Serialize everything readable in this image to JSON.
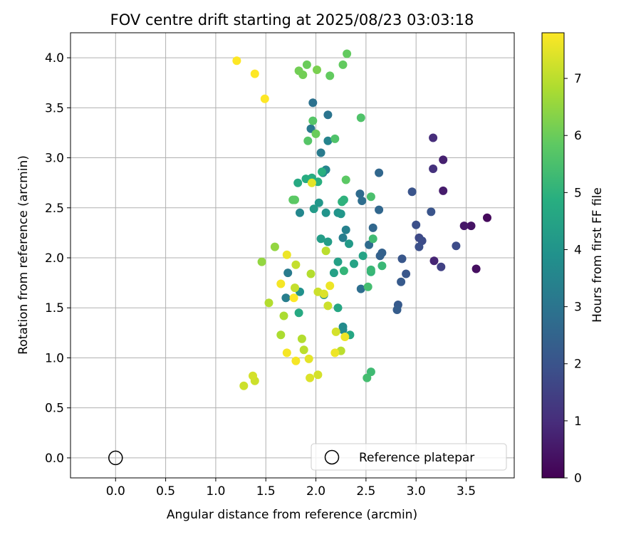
{
  "chart_data": {
    "type": "scatter",
    "title": "FOV centre drift starting at 2025/08/23 03:03:18",
    "xlabel": "Angular distance from reference (arcmin)",
    "ylabel": "Rotation from reference (arcmin)",
    "xlim": [
      -0.45,
      3.98
    ],
    "ylim": [
      -0.2,
      4.25
    ],
    "xticks": [
      "0.0",
      "0.5",
      "1.0",
      "1.5",
      "2.0",
      "2.5",
      "3.0",
      "3.5"
    ],
    "yticks": [
      "0.0",
      "0.5",
      "1.0",
      "1.5",
      "2.0",
      "2.5",
      "3.0",
      "3.5",
      "4.0"
    ],
    "grid": true,
    "colorbar": {
      "label": "Hours from first FF file",
      "range": [
        0,
        7.8
      ],
      "ticks": [
        "0",
        "1",
        "2",
        "3",
        "4",
        "5",
        "6",
        "7"
      ],
      "colormap": "viridis"
    },
    "legend": {
      "position": "lower-right",
      "entries": [
        {
          "label": "Reference platepar",
          "marker": "hollow-circle"
        }
      ]
    },
    "reference_point": {
      "x": 0.0,
      "y": 0.0
    },
    "points": [
      {
        "x": 3.71,
        "y": 2.4,
        "h": 0.2
      },
      {
        "x": 3.6,
        "y": 1.89,
        "h": 0.3
      },
      {
        "x": 3.55,
        "y": 2.32,
        "h": 0.4
      },
      {
        "x": 3.48,
        "y": 2.32,
        "h": 0.5
      },
      {
        "x": 3.27,
        "y": 2.67,
        "h": 0.6
      },
      {
        "x": 3.27,
        "y": 2.98,
        "h": 0.7
      },
      {
        "x": 3.18,
        "y": 1.97,
        "h": 0.8
      },
      {
        "x": 3.17,
        "y": 3.2,
        "h": 1.0
      },
      {
        "x": 3.17,
        "y": 2.89,
        "h": 1.1
      },
      {
        "x": 3.25,
        "y": 1.91,
        "h": 1.5
      },
      {
        "x": 3.4,
        "y": 2.12,
        "h": 1.8
      },
      {
        "x": 3.03,
        "y": 2.2,
        "h": 1.7
      },
      {
        "x": 3.06,
        "y": 2.17,
        "h": 1.8
      },
      {
        "x": 3.03,
        "y": 2.11,
        "h": 1.9
      },
      {
        "x": 3.0,
        "y": 2.33,
        "h": 1.9
      },
      {
        "x": 2.96,
        "y": 2.66,
        "h": 2.0
      },
      {
        "x": 3.15,
        "y": 2.46,
        "h": 2.0
      },
      {
        "x": 2.9,
        "y": 1.84,
        "h": 2.1
      },
      {
        "x": 2.86,
        "y": 1.99,
        "h": 2.1
      },
      {
        "x": 2.85,
        "y": 1.76,
        "h": 2.2
      },
      {
        "x": 2.82,
        "y": 1.53,
        "h": 2.2
      },
      {
        "x": 2.81,
        "y": 1.48,
        "h": 2.3
      },
      {
        "x": 2.66,
        "y": 2.05,
        "h": 2.4
      },
      {
        "x": 2.64,
        "y": 2.02,
        "h": 2.4
      },
      {
        "x": 2.63,
        "y": 2.48,
        "h": 2.6
      },
      {
        "x": 2.63,
        "y": 2.85,
        "h": 2.6
      },
      {
        "x": 2.57,
        "y": 2.3,
        "h": 2.6
      },
      {
        "x": 2.53,
        "y": 2.13,
        "h": 2.7
      },
      {
        "x": 2.44,
        "y": 2.64,
        "h": 2.7
      },
      {
        "x": 2.45,
        "y": 1.69,
        "h": 2.8
      },
      {
        "x": 2.46,
        "y": 2.57,
        "h": 2.8
      },
      {
        "x": 1.97,
        "y": 3.55,
        "h": 2.9
      },
      {
        "x": 2.12,
        "y": 3.43,
        "h": 3.0
      },
      {
        "x": 1.95,
        "y": 3.29,
        "h": 3.1
      },
      {
        "x": 2.05,
        "y": 3.05,
        "h": 3.2
      },
      {
        "x": 1.72,
        "y": 1.85,
        "h": 3.2
      },
      {
        "x": 1.7,
        "y": 1.6,
        "h": 3.3
      },
      {
        "x": 2.27,
        "y": 2.2,
        "h": 3.3
      },
      {
        "x": 2.3,
        "y": 2.28,
        "h": 3.4
      },
      {
        "x": 2.12,
        "y": 3.17,
        "h": 3.5
      },
      {
        "x": 2.1,
        "y": 2.88,
        "h": 3.5
      },
      {
        "x": 2.07,
        "y": 2.85,
        "h": 3.6
      },
      {
        "x": 1.84,
        "y": 2.45,
        "h": 3.6
      },
      {
        "x": 2.27,
        "y": 1.31,
        "h": 3.7
      },
      {
        "x": 2.27,
        "y": 1.28,
        "h": 3.7
      },
      {
        "x": 2.08,
        "y": 1.63,
        "h": 3.8
      },
      {
        "x": 1.84,
        "y": 1.66,
        "h": 3.9
      },
      {
        "x": 2.1,
        "y": 2.45,
        "h": 4.0
      },
      {
        "x": 2.22,
        "y": 2.45,
        "h": 4.0
      },
      {
        "x": 2.25,
        "y": 2.44,
        "h": 4.1
      },
      {
        "x": 2.03,
        "y": 2.55,
        "h": 4.1
      },
      {
        "x": 1.98,
        "y": 2.49,
        "h": 4.2
      },
      {
        "x": 2.33,
        "y": 2.14,
        "h": 4.2
      },
      {
        "x": 2.05,
        "y": 2.19,
        "h": 4.3
      },
      {
        "x": 2.12,
        "y": 2.16,
        "h": 4.3
      },
      {
        "x": 2.18,
        "y": 1.85,
        "h": 4.4
      },
      {
        "x": 2.22,
        "y": 1.96,
        "h": 4.4
      },
      {
        "x": 2.38,
        "y": 1.94,
        "h": 4.5
      },
      {
        "x": 2.47,
        "y": 2.02,
        "h": 4.5
      },
      {
        "x": 2.22,
        "y": 1.5,
        "h": 4.6
      },
      {
        "x": 2.34,
        "y": 1.23,
        "h": 4.6
      },
      {
        "x": 1.83,
        "y": 1.45,
        "h": 4.7
      },
      {
        "x": 1.82,
        "y": 2.75,
        "h": 4.7
      },
      {
        "x": 1.9,
        "y": 2.79,
        "h": 4.8
      },
      {
        "x": 1.96,
        "y": 2.8,
        "h": 4.8
      },
      {
        "x": 2.02,
        "y": 2.76,
        "h": 4.9
      },
      {
        "x": 2.06,
        "y": 2.86,
        "h": 4.9
      },
      {
        "x": 2.26,
        "y": 2.56,
        "h": 5.0
      },
      {
        "x": 2.28,
        "y": 2.58,
        "h": 5.0
      },
      {
        "x": 2.28,
        "y": 1.87,
        "h": 5.1
      },
      {
        "x": 2.55,
        "y": 1.86,
        "h": 5.1
      },
      {
        "x": 2.55,
        "y": 1.88,
        "h": 5.2
      },
      {
        "x": 2.66,
        "y": 1.92,
        "h": 5.2
      },
      {
        "x": 2.57,
        "y": 2.19,
        "h": 5.3
      },
      {
        "x": 2.55,
        "y": 0.86,
        "h": 5.3
      },
      {
        "x": 2.51,
        "y": 0.8,
        "h": 5.4
      },
      {
        "x": 2.52,
        "y": 1.71,
        "h": 5.4
      },
      {
        "x": 2.55,
        "y": 2.61,
        "h": 5.5
      },
      {
        "x": 2.45,
        "y": 3.4,
        "h": 5.6
      },
      {
        "x": 2.19,
        "y": 3.19,
        "h": 5.6
      },
      {
        "x": 1.92,
        "y": 3.17,
        "h": 5.7
      },
      {
        "x": 1.97,
        "y": 3.37,
        "h": 5.7
      },
      {
        "x": 1.77,
        "y": 2.58,
        "h": 5.8
      },
      {
        "x": 1.79,
        "y": 2.58,
        "h": 5.8
      },
      {
        "x": 2.3,
        "y": 2.78,
        "h": 5.8
      },
      {
        "x": 2.14,
        "y": 3.82,
        "h": 5.9
      },
      {
        "x": 2.27,
        "y": 3.93,
        "h": 5.9
      },
      {
        "x": 2.31,
        "y": 4.04,
        "h": 5.9
      },
      {
        "x": 2.0,
        "y": 3.24,
        "h": 6.0
      },
      {
        "x": 1.91,
        "y": 3.93,
        "h": 6.0
      },
      {
        "x": 1.83,
        "y": 3.87,
        "h": 6.1
      },
      {
        "x": 1.87,
        "y": 3.83,
        "h": 6.1
      },
      {
        "x": 2.01,
        "y": 3.88,
        "h": 6.2
      },
      {
        "x": 1.59,
        "y": 2.11,
        "h": 6.5
      },
      {
        "x": 1.46,
        "y": 1.96,
        "h": 6.5
      },
      {
        "x": 1.95,
        "y": 1.84,
        "h": 6.9
      },
      {
        "x": 1.68,
        "y": 1.42,
        "h": 6.8
      },
      {
        "x": 1.65,
        "y": 1.23,
        "h": 6.8
      },
      {
        "x": 1.53,
        "y": 1.55,
        "h": 6.9
      },
      {
        "x": 1.86,
        "y": 1.19,
        "h": 6.9
      },
      {
        "x": 1.88,
        "y": 1.08,
        "h": 7.0
      },
      {
        "x": 2.25,
        "y": 1.07,
        "h": 7.0
      },
      {
        "x": 2.1,
        "y": 2.07,
        "h": 7.0
      },
      {
        "x": 1.79,
        "y": 1.7,
        "h": 7.1
      },
      {
        "x": 1.8,
        "y": 1.93,
        "h": 7.1
      },
      {
        "x": 2.02,
        "y": 1.66,
        "h": 7.2
      },
      {
        "x": 2.12,
        "y": 1.52,
        "h": 7.2
      },
      {
        "x": 2.2,
        "y": 1.26,
        "h": 7.3
      },
      {
        "x": 2.02,
        "y": 0.83,
        "h": 7.3
      },
      {
        "x": 1.94,
        "y": 0.8,
        "h": 7.4
      },
      {
        "x": 1.37,
        "y": 0.82,
        "h": 7.3
      },
      {
        "x": 1.39,
        "y": 0.77,
        "h": 7.2
      },
      {
        "x": 1.28,
        "y": 0.72,
        "h": 7.2
      },
      {
        "x": 1.93,
        "y": 0.99,
        "h": 7.5
      },
      {
        "x": 1.96,
        "y": 2.75,
        "h": 7.5
      },
      {
        "x": 1.71,
        "y": 2.03,
        "h": 7.6
      },
      {
        "x": 2.08,
        "y": 1.64,
        "h": 7.4
      },
      {
        "x": 2.14,
        "y": 1.72,
        "h": 7.6
      },
      {
        "x": 2.29,
        "y": 1.21,
        "h": 7.6
      },
      {
        "x": 2.19,
        "y": 1.05,
        "h": 7.6
      },
      {
        "x": 1.71,
        "y": 1.05,
        "h": 7.7
      },
      {
        "x": 1.8,
        "y": 0.97,
        "h": 7.7
      },
      {
        "x": 1.65,
        "y": 1.74,
        "h": 7.7
      },
      {
        "x": 1.78,
        "y": 1.6,
        "h": 7.8
      },
      {
        "x": 1.49,
        "y": 3.59,
        "h": 7.8
      },
      {
        "x": 1.39,
        "y": 3.84,
        "h": 7.8
      },
      {
        "x": 1.21,
        "y": 3.97,
        "h": 7.8
      }
    ]
  }
}
